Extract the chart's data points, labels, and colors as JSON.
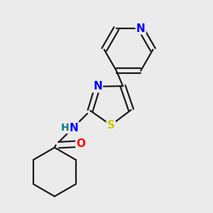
{
  "bg_color": "#ebebeb",
  "bond_color": "#1a1a1a",
  "N_color": "#0000ff",
  "O_color": "#ff0000",
  "S_color": "#cccc00",
  "H_color": "#008080",
  "line_width": 1.6,
  "dbo": 0.013,
  "font_size_atom": 11,
  "fig_size": [
    3.0,
    3.0
  ],
  "dpi": 100,
  "xlim": [
    0.1,
    0.9
  ],
  "ylim": [
    0.05,
    0.95
  ]
}
